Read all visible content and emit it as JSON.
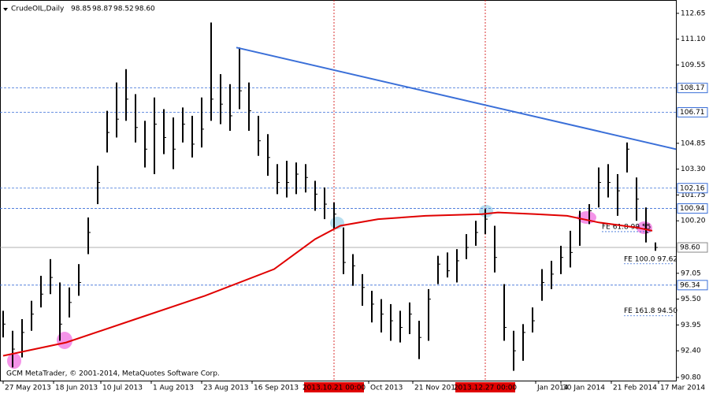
{
  "chart_data": {
    "type": "ohlc",
    "title": "CrudeOIL,Daily",
    "header_values": [
      "98.85",
      "98.87",
      "98.52",
      "98.60"
    ],
    "copyright": "GCM MetaTrader, © 2001-2014, MetaQuotes Software Corp.",
    "color": "#000000",
    "x": [
      0,
      3,
      6,
      9,
      12,
      15,
      18,
      21,
      24,
      27,
      30,
      33,
      36,
      39,
      42,
      45,
      48,
      51,
      54,
      57,
      60,
      63,
      66,
      69,
      72,
      75,
      78,
      81,
      84,
      87,
      90,
      93,
      96,
      99,
      102,
      105,
      108,
      111,
      114,
      117,
      120,
      123,
      126,
      129,
      132,
      135,
      138,
      141,
      144,
      147,
      150,
      153,
      156,
      159,
      162,
      165,
      168,
      171,
      174,
      177,
      180,
      183,
      186,
      189,
      192,
      195,
      198,
      201,
      204,
      207
    ],
    "high": [
      94.8,
      93.6,
      94.3,
      95.4,
      96.9,
      97.9,
      96.5,
      96.2,
      97.6,
      100.4,
      103.5,
      106.8,
      108.5,
      109.3,
      107.8,
      106.2,
      107.6,
      106.9,
      106.4,
      107.0,
      106.5,
      107.6,
      112.1,
      109.0,
      108.4,
      110.6,
      108.5,
      106.5,
      105.4,
      103.6,
      103.8,
      103.7,
      103.6,
      102.6,
      102.2,
      101.3,
      99.8,
      98.2,
      97.0,
      96.0,
      95.5,
      95.2,
      94.8,
      95.3,
      94.2,
      96.1,
      98.1,
      98.3,
      98.5,
      99.4,
      100.2,
      100.9,
      99.9,
      96.4,
      93.6,
      94.0,
      95.0,
      97.3,
      97.8,
      98.7,
      99.6,
      100.8,
      101.2,
      103.4,
      103.6,
      103.0,
      104.9,
      102.8,
      101.0,
      98.9
    ],
    "low": [
      93.2,
      91.4,
      92.0,
      93.6,
      95.0,
      95.8,
      93.0,
      94.4,
      95.7,
      98.2,
      101.2,
      104.3,
      105.2,
      106.2,
      104.9,
      103.4,
      103.0,
      104.2,
      103.3,
      104.9,
      104.0,
      104.6,
      106.2,
      106.0,
      105.6,
      106.9,
      105.6,
      104.1,
      102.9,
      101.8,
      101.6,
      101.8,
      101.9,
      100.8,
      100.3,
      99.7,
      97.0,
      96.3,
      95.1,
      94.1,
      93.5,
      93.0,
      92.9,
      93.4,
      91.9,
      93.0,
      96.4,
      96.8,
      96.5,
      97.9,
      98.7,
      99.4,
      97.1,
      93.0,
      91.2,
      91.8,
      93.5,
      95.4,
      96.1,
      97.0,
      97.4,
      98.7,
      100.0,
      101.0,
      101.6,
      100.5,
      103.1,
      100.2,
      98.9,
      98.4
    ],
    "close": [
      94.0,
      92.5,
      93.5,
      94.6,
      95.8,
      96.8,
      94.0,
      95.3,
      96.5,
      99.5,
      102.5,
      105.5,
      106.3,
      107.5,
      105.8,
      104.5,
      106.0,
      105.2,
      104.5,
      106.0,
      104.8,
      105.7,
      107.5,
      107.2,
      106.5,
      108.0,
      106.8,
      105.0,
      104.0,
      102.5,
      102.5,
      103.0,
      102.8,
      101.8,
      101.2,
      100.6,
      97.7,
      97.5,
      96.2,
      95.2,
      94.6,
      94.2,
      93.8,
      94.6,
      93.2,
      95.5,
      97.6,
      97.2,
      97.8,
      98.6,
      99.5,
      100.3,
      98.0,
      93.8,
      92.4,
      93.5,
      94.2,
      96.5,
      97.0,
      98.0,
      98.3,
      100.3,
      100.8,
      102.5,
      102.5,
      102.0,
      104.5,
      101.5,
      99.5,
      98.6
    ],
    "moving_average": {
      "color": "#e00000",
      "x": [
        0,
        20,
        42,
        64,
        86,
        99,
        107,
        119,
        134,
        152,
        157,
        169,
        179,
        189,
        201,
        206
      ],
      "values": [
        92.1,
        92.9,
        94.3,
        95.7,
        97.3,
        99.1,
        99.9,
        100.3,
        100.5,
        100.6,
        100.7,
        100.6,
        100.5,
        100.1,
        99.8,
        99.6
      ]
    },
    "trendline": {
      "color": "#3a6fd8",
      "x": [
        74,
        213.5
      ],
      "values": [
        110.6,
        104.5
      ]
    },
    "levels": [
      108.17,
      106.71,
      102.16,
      100.94,
      96.34
    ],
    "level_color": "#3a6fd8",
    "current_price": {
      "value": 98.6,
      "label": "98.60"
    },
    "fibo": [
      {
        "label": "FE 61.8 99.55",
        "value": 99.55,
        "x": 190
      },
      {
        "label": "FE 100.0 97.62",
        "value": 97.62,
        "x": 197
      },
      {
        "label": "FE 161.8 94.50",
        "value": 94.5,
        "x": 197
      }
    ],
    "markers": [
      {
        "x": 105,
        "label": "2013.10.21 00:00"
      },
      {
        "x": 153,
        "label": "2013.12.27 00:00"
      }
    ],
    "xlim": [
      -1,
      213.5
    ],
    "ylim": [
      90.61,
      113.45
    ],
    "yticks": [
      112.65,
      {
        "value": 111.1,
        "label": "111.10"
      },
      109.55,
      104.85,
      {
        "value": 103.3,
        "label": "103.30"
      },
      101.75,
      {
        "value": 100.2,
        "label": "100.20"
      },
      97.05,
      {
        "value": 95.5,
        "label": "95.50"
      },
      93.95,
      {
        "value": 92.4,
        "label": "92.40"
      },
      {
        "value": 90.8,
        "label": "90.80"
      }
    ],
    "xticks": [
      {
        "value": 0,
        "label": "27 May 2013"
      },
      {
        "value": 16,
        "label": "18 Jun 2013"
      },
      {
        "value": 31,
        "label": "10 Jul 2013"
      },
      {
        "value": 47,
        "label": "1 Aug 2013"
      },
      {
        "value": 63,
        "label": "23 Aug 2013"
      },
      {
        "value": 79,
        "label": "16 Sep 2013"
      },
      {
        "value": 116,
        "label": "Oct 2013"
      },
      {
        "value": 130,
        "label": "21 Nov 2013"
      },
      {
        "value": 169,
        "label": "Jan 2014"
      },
      {
        "value": 177,
        "label": "30 Jan 2014"
      },
      {
        "value": 193,
        "label": "21 Feb 2014"
      },
      {
        "value": 208,
        "label": "17 Mar 2014"
      }
    ]
  }
}
